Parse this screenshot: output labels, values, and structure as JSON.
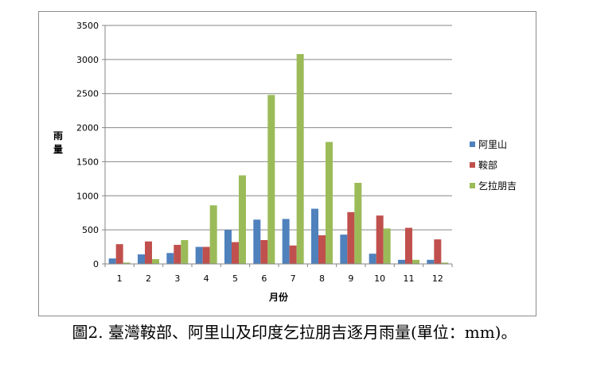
{
  "caption": "圖2. 臺灣鞍部、阿里山及印度乞拉朋吉逐月雨量(單位：mm)。",
  "chart_data": {
    "type": "bar",
    "categories": [
      "1",
      "2",
      "3",
      "4",
      "5",
      "6",
      "7",
      "8",
      "9",
      "10",
      "11",
      "12"
    ],
    "xlabel": "月份",
    "ylabel": "雨量",
    "ylim": [
      0,
      3500
    ],
    "yticks": [
      0,
      500,
      1000,
      1500,
      2000,
      2500,
      3000,
      3500
    ],
    "grid": true,
    "legend": "right",
    "series": [
      {
        "name": "阿里山",
        "color": "#4f81bd",
        "values": [
          80,
          140,
          160,
          250,
          500,
          650,
          660,
          810,
          430,
          150,
          60,
          60
        ]
      },
      {
        "name": "鞍部",
        "color": "#c0504d",
        "values": [
          290,
          330,
          280,
          250,
          320,
          350,
          270,
          420,
          760,
          710,
          530,
          360
        ]
      },
      {
        "name": "乞拉朋吉",
        "color": "#9bbb59",
        "values": [
          20,
          70,
          350,
          860,
          1300,
          2480,
          3080,
          1790,
          1190,
          520,
          60,
          20
        ]
      }
    ]
  }
}
